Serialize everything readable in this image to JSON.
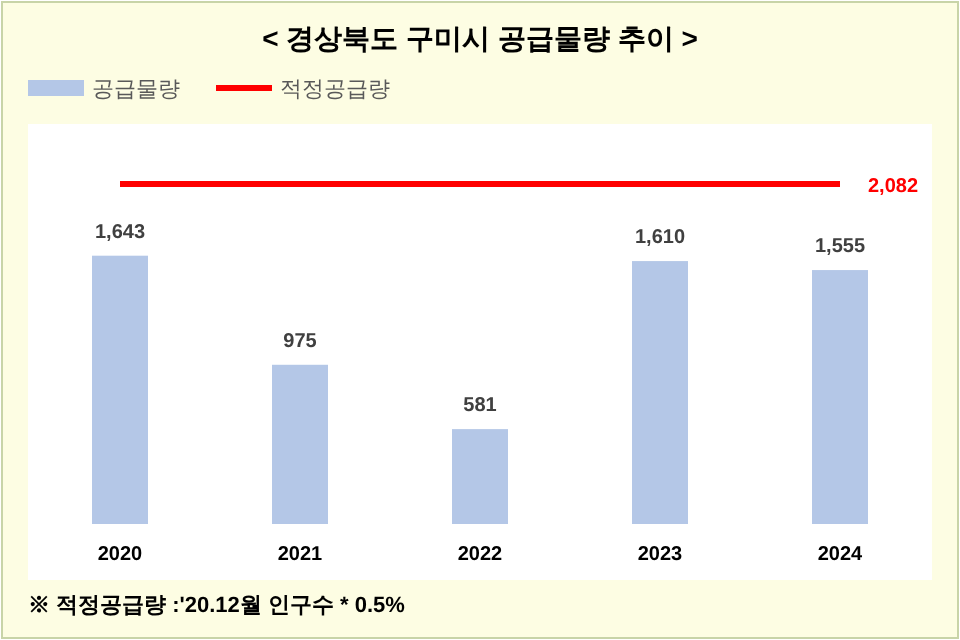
{
  "chart_data": {
    "type": "bar",
    "title": "< 경상북도 구미시 공급물량 추이 >",
    "categories": [
      "2020",
      "2021",
      "2022",
      "2023",
      "2024"
    ],
    "series": [
      {
        "name": "공급물량",
        "color": "#b4c7e7",
        "values": [
          1643,
          975,
          581,
          1610,
          1555
        ],
        "value_labels": [
          "1,643",
          "975",
          "581",
          "1,610",
          "1,555"
        ]
      },
      {
        "name": "적정공급량",
        "type": "line",
        "color": "#ff0000",
        "values": [
          2082,
          2082,
          2082,
          2082,
          2082
        ],
        "value_labels": [
          null,
          null,
          null,
          null,
          "2,082"
        ]
      }
    ],
    "legend": "top left",
    "grid": false,
    "annotations": [
      "※ 적정공급량 :'20.12월 인구수 * 0.5%"
    ]
  }
}
